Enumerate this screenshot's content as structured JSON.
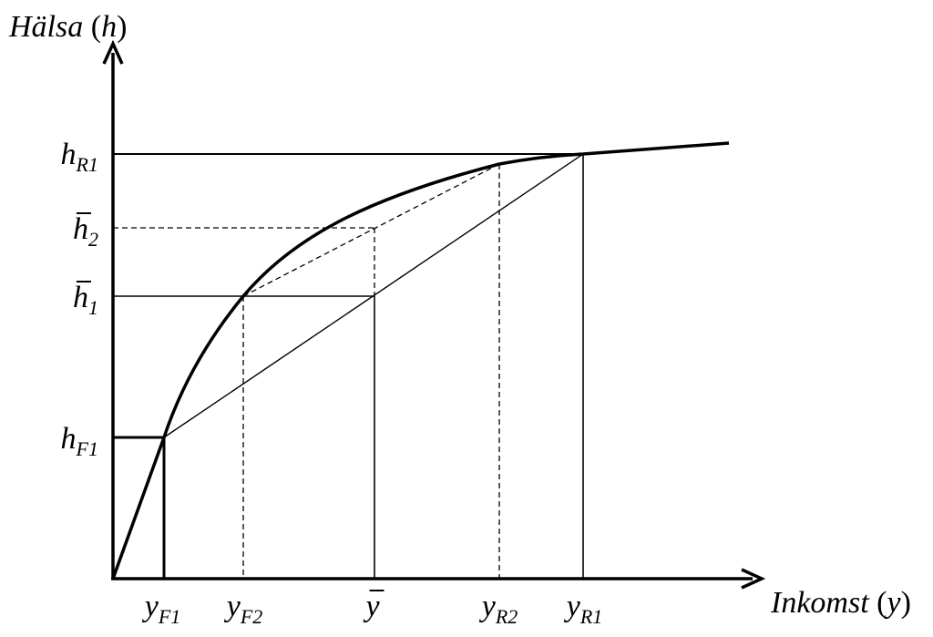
{
  "y_axis_label": [
    {
      "text": "Hälsa ",
      "italic": true
    },
    {
      "text": "(",
      "italic": false
    },
    {
      "text": "h",
      "italic": true
    },
    {
      "text": ")",
      "italic": false
    }
  ],
  "x_axis_label": [
    {
      "text": "Inkomst ",
      "italic": true
    },
    {
      "text": "(",
      "italic": false
    },
    {
      "text": "y",
      "italic": true
    },
    {
      "text": ")",
      "italic": false
    }
  ],
  "y_labels": [
    {
      "main": "h",
      "sub": "R1",
      "bar": false
    },
    {
      "main": "h",
      "sub": "2",
      "bar": true
    },
    {
      "main": "h",
      "sub": "1",
      "bar": true
    },
    {
      "main": "h",
      "sub": "F1",
      "bar": false
    }
  ],
  "x_labels": [
    {
      "main": "y",
      "sub": "F1",
      "bar": false
    },
    {
      "main": "y",
      "sub": "F2",
      "bar": false
    },
    {
      "main": "y",
      "bar": true
    },
    {
      "main": "y",
      "sub": "R2",
      "bar": false
    },
    {
      "main": "y",
      "sub": "R1",
      "bar": false
    }
  ]
}
